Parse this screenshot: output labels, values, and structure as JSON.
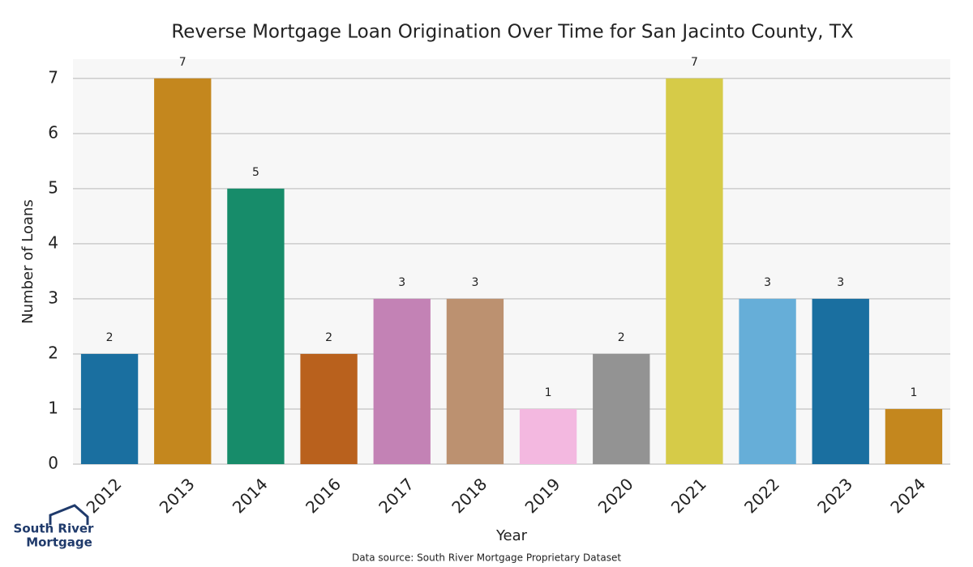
{
  "chart_data": {
    "type": "bar",
    "title": "Reverse Mortgage Loan Origination Over Time for San Jacinto County, TX",
    "x_label": "Year",
    "y_label": "Number of Loans",
    "categories": [
      "2012",
      "2013",
      "2014",
      "2016",
      "2017",
      "2018",
      "2019",
      "2020",
      "2021",
      "2022",
      "2023",
      "2024"
    ],
    "values": [
      2,
      7,
      5,
      2,
      3,
      3,
      1,
      2,
      7,
      3,
      3,
      1
    ],
    "colors": [
      "#1a6fa0",
      "#c4871e",
      "#178c6a",
      "#b9611d",
      "#c382b5",
      "#bc9170",
      "#f3b8e0",
      "#939393",
      "#d6cb48",
      "#66aed8",
      "#1a6fa0",
      "#c4871e"
    ],
    "ylim": [
      0,
      7.35
    ],
    "yticks": [
      0,
      1,
      2,
      3,
      4,
      5,
      6,
      7
    ],
    "grid": true,
    "source": "Data source: South River Mortgage Proprietary Dataset"
  },
  "logo": {
    "line1": "South River",
    "line2": "Mortgage"
  }
}
